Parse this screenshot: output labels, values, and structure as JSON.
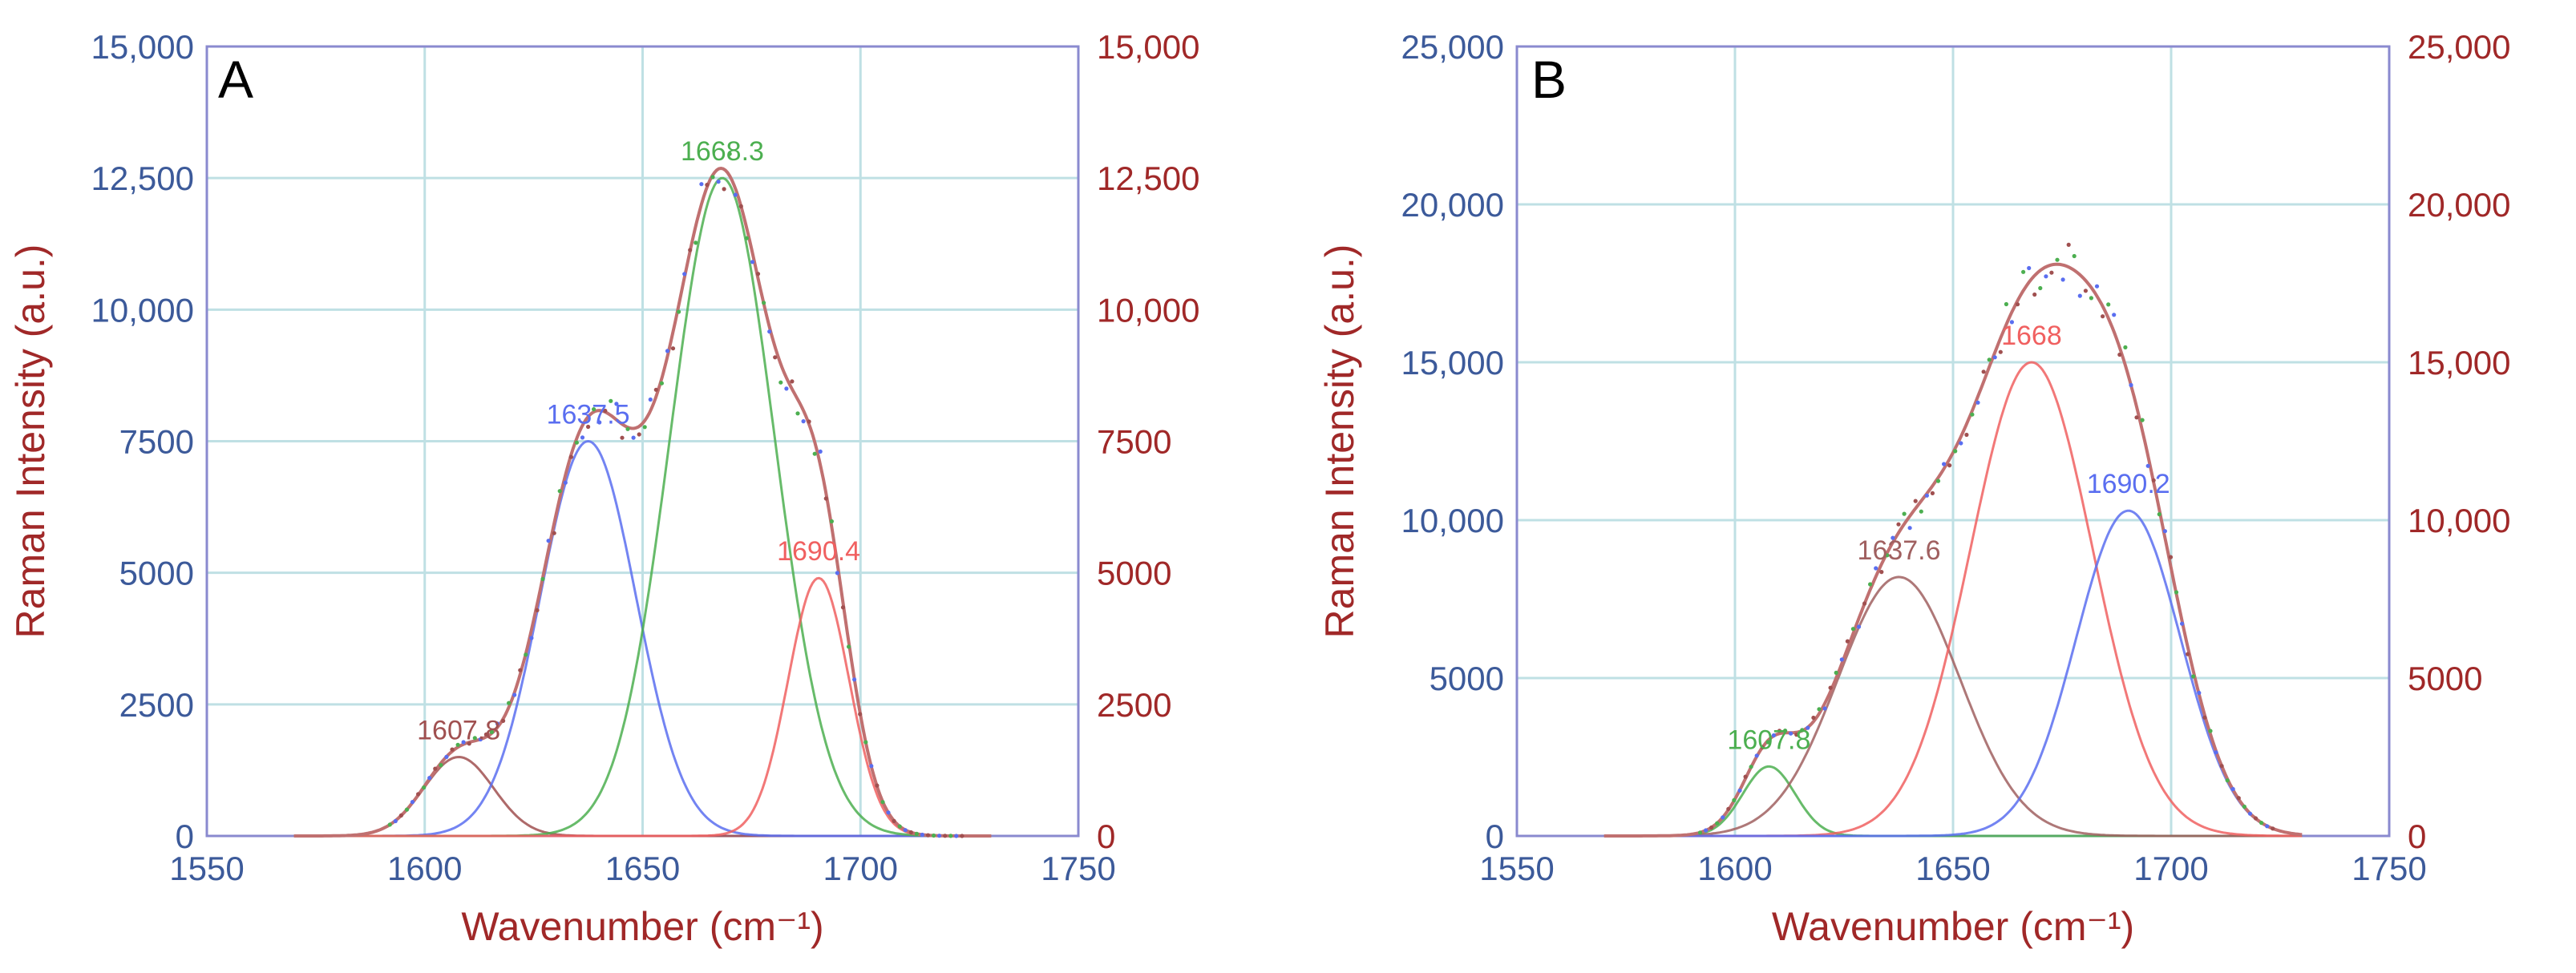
{
  "chart_data": [
    {
      "panel": "A",
      "type": "line",
      "xlabel": "Wavenumber (cm⁻¹)",
      "ylabel": "Raman Intensity (a.u.)",
      "xlim": [
        1550,
        1750
      ],
      "ylim": [
        0,
        15000
      ],
      "x_ticks": [
        "1550",
        "1600",
        "1650",
        "1700",
        "1750"
      ],
      "y_ticks_left": [
        "0",
        "2500",
        "5000",
        "7500",
        "10,000",
        "12,500",
        "15,000"
      ],
      "y_ticks_right": [
        "0",
        "2500",
        "5000",
        "7500",
        "10,000",
        "12,500",
        "15,000"
      ],
      "grid": true,
      "colors": {
        "left_axis": "#3c5a9a",
        "right_axis": "#a02828",
        "grid": "#bfe0e4",
        "frame": "#8a8acf"
      },
      "peaks": [
        {
          "label": "1607.8",
          "center": 1607.8,
          "amplitude": 1500,
          "sigma": 8,
          "color": "#a05050"
        },
        {
          "label": "1637.5",
          "center": 1637.5,
          "amplitude": 7500,
          "sigma": 11,
          "color": "#5a6ef0"
        },
        {
          "label": "1668.3",
          "center": 1668.3,
          "amplitude": 12500,
          "sigma": 12,
          "color": "#4caf50"
        },
        {
          "label": "1690.4",
          "center": 1690.4,
          "amplitude": 4900,
          "sigma": 7,
          "color": "#f06060"
        }
      ],
      "envelope_color": "#c07070"
    },
    {
      "panel": "B",
      "type": "line",
      "xlabel": "Wavenumber (cm⁻¹)",
      "ylabel": "Raman Intensity (a.u.)",
      "xlim": [
        1550,
        1750
      ],
      "ylim": [
        0,
        25000
      ],
      "x_ticks": [
        "1550",
        "1600",
        "1650",
        "1700",
        "1750"
      ],
      "y_ticks_left": [
        "0",
        "5000",
        "10,000",
        "15,000",
        "20,000",
        "25,000"
      ],
      "y_ticks_right": [
        "0",
        "5000",
        "10,000",
        "15,000",
        "20,000",
        "25,000"
      ],
      "grid": true,
      "colors": {
        "left_axis": "#3c5a9a",
        "right_axis": "#a02828",
        "grid": "#bfe0e4",
        "frame": "#8a8acf"
      },
      "peaks": [
        {
          "label": "1607.8",
          "center": 1607.8,
          "amplitude": 2200,
          "sigma": 6,
          "color": "#4caf50"
        },
        {
          "label": "1637.6",
          "center": 1637.6,
          "amplitude": 8200,
          "sigma": 14,
          "color": "#a06060"
        },
        {
          "label": "1668",
          "center": 1668,
          "amplitude": 15000,
          "sigma": 14,
          "color": "#f06060"
        },
        {
          "label": "1690.2",
          "center": 1690.2,
          "amplitude": 10300,
          "sigma": 12,
          "color": "#5a6ef0"
        }
      ],
      "envelope_color": "#c07070"
    }
  ]
}
